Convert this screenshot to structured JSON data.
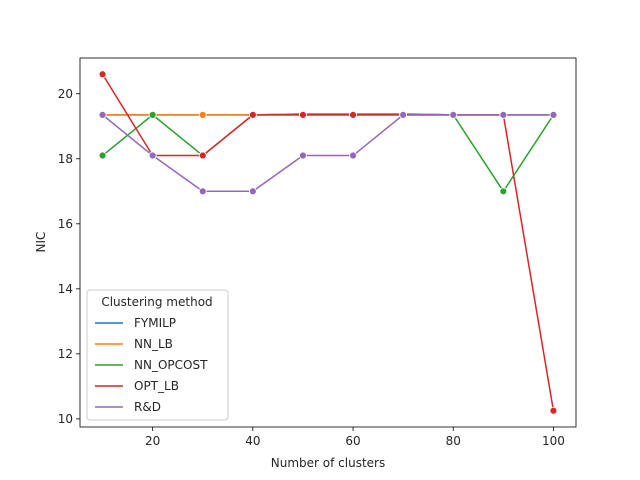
{
  "chart_data": {
    "type": "line",
    "title": "",
    "xlabel": "Number of clusters",
    "ylabel": "NIC",
    "xlim": [
      5.5,
      104.5
    ],
    "ylim": [
      9.75,
      21.1
    ],
    "xticks": [
      20,
      40,
      60,
      80,
      100
    ],
    "yticks": [
      10,
      12,
      14,
      16,
      18,
      20
    ],
    "grid": false,
    "legend": {
      "title": "Clustering method",
      "placement": "lower-left"
    },
    "x": [
      10,
      20,
      30,
      40,
      50,
      60,
      70,
      80,
      90,
      100
    ],
    "series": [
      {
        "name": "FYMILP",
        "color": "#1f77b4",
        "values": [
          19.35,
          19.35,
          19.35,
          19.35,
          19.38,
          19.38,
          19.38,
          19.35,
          19.35,
          19.35
        ]
      },
      {
        "name": "NN_LB",
        "color": "#ff7f0e",
        "values": [
          19.35,
          19.35,
          19.35,
          19.35,
          19.38,
          19.38,
          19.38,
          19.35,
          19.35,
          19.35
        ]
      },
      {
        "name": "NN_OPCOST",
        "color": "#2ca02c",
        "values": [
          18.1,
          19.35,
          18.1,
          19.35,
          19.35,
          19.35,
          19.35,
          19.35,
          17.0,
          19.35
        ]
      },
      {
        "name": "OPT_LB",
        "color": "#d62728",
        "values": [
          20.6,
          18.1,
          18.1,
          19.35,
          19.35,
          19.35,
          19.35,
          19.35,
          19.35,
          10.25
        ]
      },
      {
        "name": "R&D",
        "color": "#9467bd",
        "values": [
          19.35,
          18.1,
          17.0,
          17.0,
          18.1,
          18.1,
          19.35,
          19.35,
          19.35,
          19.35
        ]
      }
    ]
  }
}
